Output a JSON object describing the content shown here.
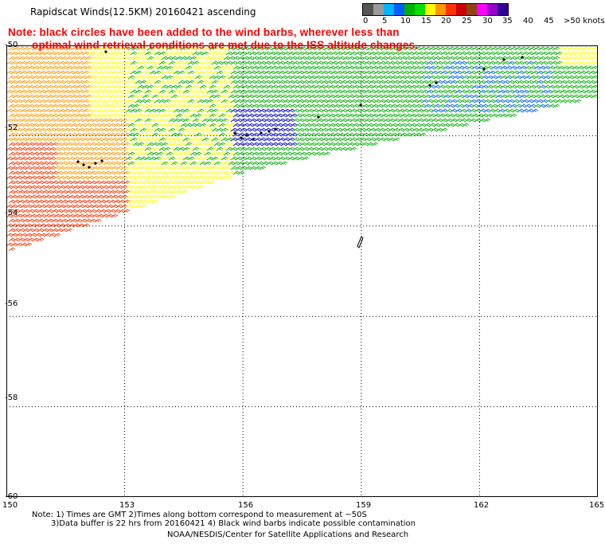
{
  "title": "Rapidscat Winds(12.5KM) 20160421 ascending",
  "note_line1": "Note: black circles have been added to the wind barbs, wherever less than",
  "note_line2": "optimal wind retrieval conditions are met due to the ISS altitude changes.",
  "legend": {
    "labels": [
      "0",
      "5",
      "10",
      "15",
      "20",
      "25",
      "30",
      "35",
      "40",
      "45",
      ">50 knots"
    ],
    "colors": [
      "#555555",
      "#9a9a9a",
      "#00b4ff",
      "#0060ff",
      "#00b000",
      "#00e000",
      "#ffff00",
      "#ff9900",
      "#ff3300",
      "#cc0000",
      "#8b4513",
      "#ff00ff",
      "#9900cc",
      "#330099"
    ]
  },
  "axes": {
    "lat_labels": [
      "-50",
      "-52",
      "-54",
      "-56",
      "-58",
      "-60"
    ],
    "lon_labels": [
      "150",
      "153",
      "156",
      "159",
      "162",
      "165"
    ],
    "lat_range": [
      -60,
      -50
    ],
    "lon_range": [
      150,
      165
    ],
    "grid": "dotted"
  },
  "footnote_line1": "Note: 1) Times are GMT 2)Times along bottom correspond to measurement at ~50S",
  "footnote_line2": "3)Data buffer is 22 hrs from 20160421 4) Black wind barbs indicate possible contamination",
  "credit": "NOAA/NESDIS/Center for Satellite Applications and Research"
}
